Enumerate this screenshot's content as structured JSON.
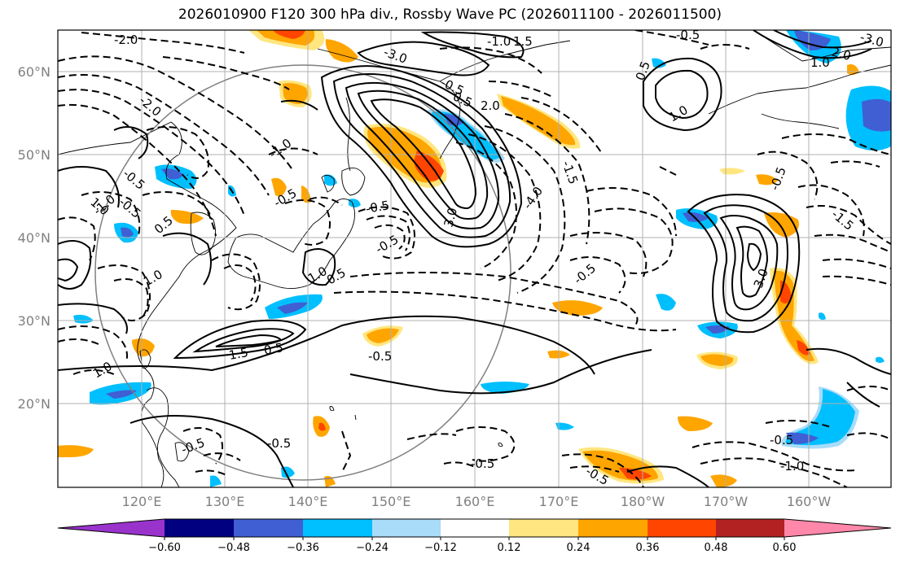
{
  "title": "2026010900 F120 300 hPa div., Rossby Wave PC (2026011100 - 2026011500)",
  "map": {
    "lat_labels": [
      "60°N",
      "50°N",
      "40°N",
      "30°N",
      "20°N"
    ],
    "lon_labels": [
      "120°E",
      "130°E",
      "140°E",
      "150°E",
      "160°E",
      "170°E",
      "180°W",
      "170°W",
      "160°W"
    ],
    "contour_labels": [
      "-2.0",
      "-3.0",
      "-1.0",
      "1.5",
      "-0.5",
      "-3.0",
      "2.0",
      "1.0",
      "-2.0",
      "0.5",
      "1.0",
      "-0.5",
      "0.5",
      "-1.0",
      "2.0",
      "-1.5",
      "-1.0",
      "-0.5",
      "1.0",
      "-0.5",
      "-0.5",
      "-0.5",
      "3.0",
      "-4.0",
      "-0.5",
      "1.0",
      "0.5",
      "3.0",
      "-0.5",
      "-1.5",
      "-0.5",
      "1.0",
      "0.5",
      "1.5",
      "0.5",
      "-0.5",
      "1.0",
      "-0.5",
      "-0.5",
      "-0.5",
      "-0.5",
      "-0.5",
      "-1.0"
    ]
  },
  "colorbar": {
    "tick_labels": [
      "−0.60",
      "−0.48",
      "−0.36",
      "−0.24",
      "−0.12",
      "0.12",
      "0.24",
      "0.36",
      "0.48",
      "0.60"
    ],
    "colors": [
      "#9933cc",
      "#000080",
      "#3f5fd3",
      "#00bfff",
      "#a8dcf8",
      "#ffffff",
      "#ffe680",
      "#ffa500",
      "#ff4500",
      "#b22222",
      "#ff88aa"
    ]
  },
  "palette": {
    "purple": "#9933cc",
    "navy": "#000080",
    "blue": "#3f5fd3",
    "cyan": "#00bfff",
    "lightblue": "#a8dcf8",
    "yellow": "#ffe680",
    "orange": "#ffa500",
    "redorange": "#ff4500",
    "darkred": "#b22222",
    "pink": "#ff88aa",
    "grid": "#b0b0b0",
    "circle": "#808080"
  }
}
